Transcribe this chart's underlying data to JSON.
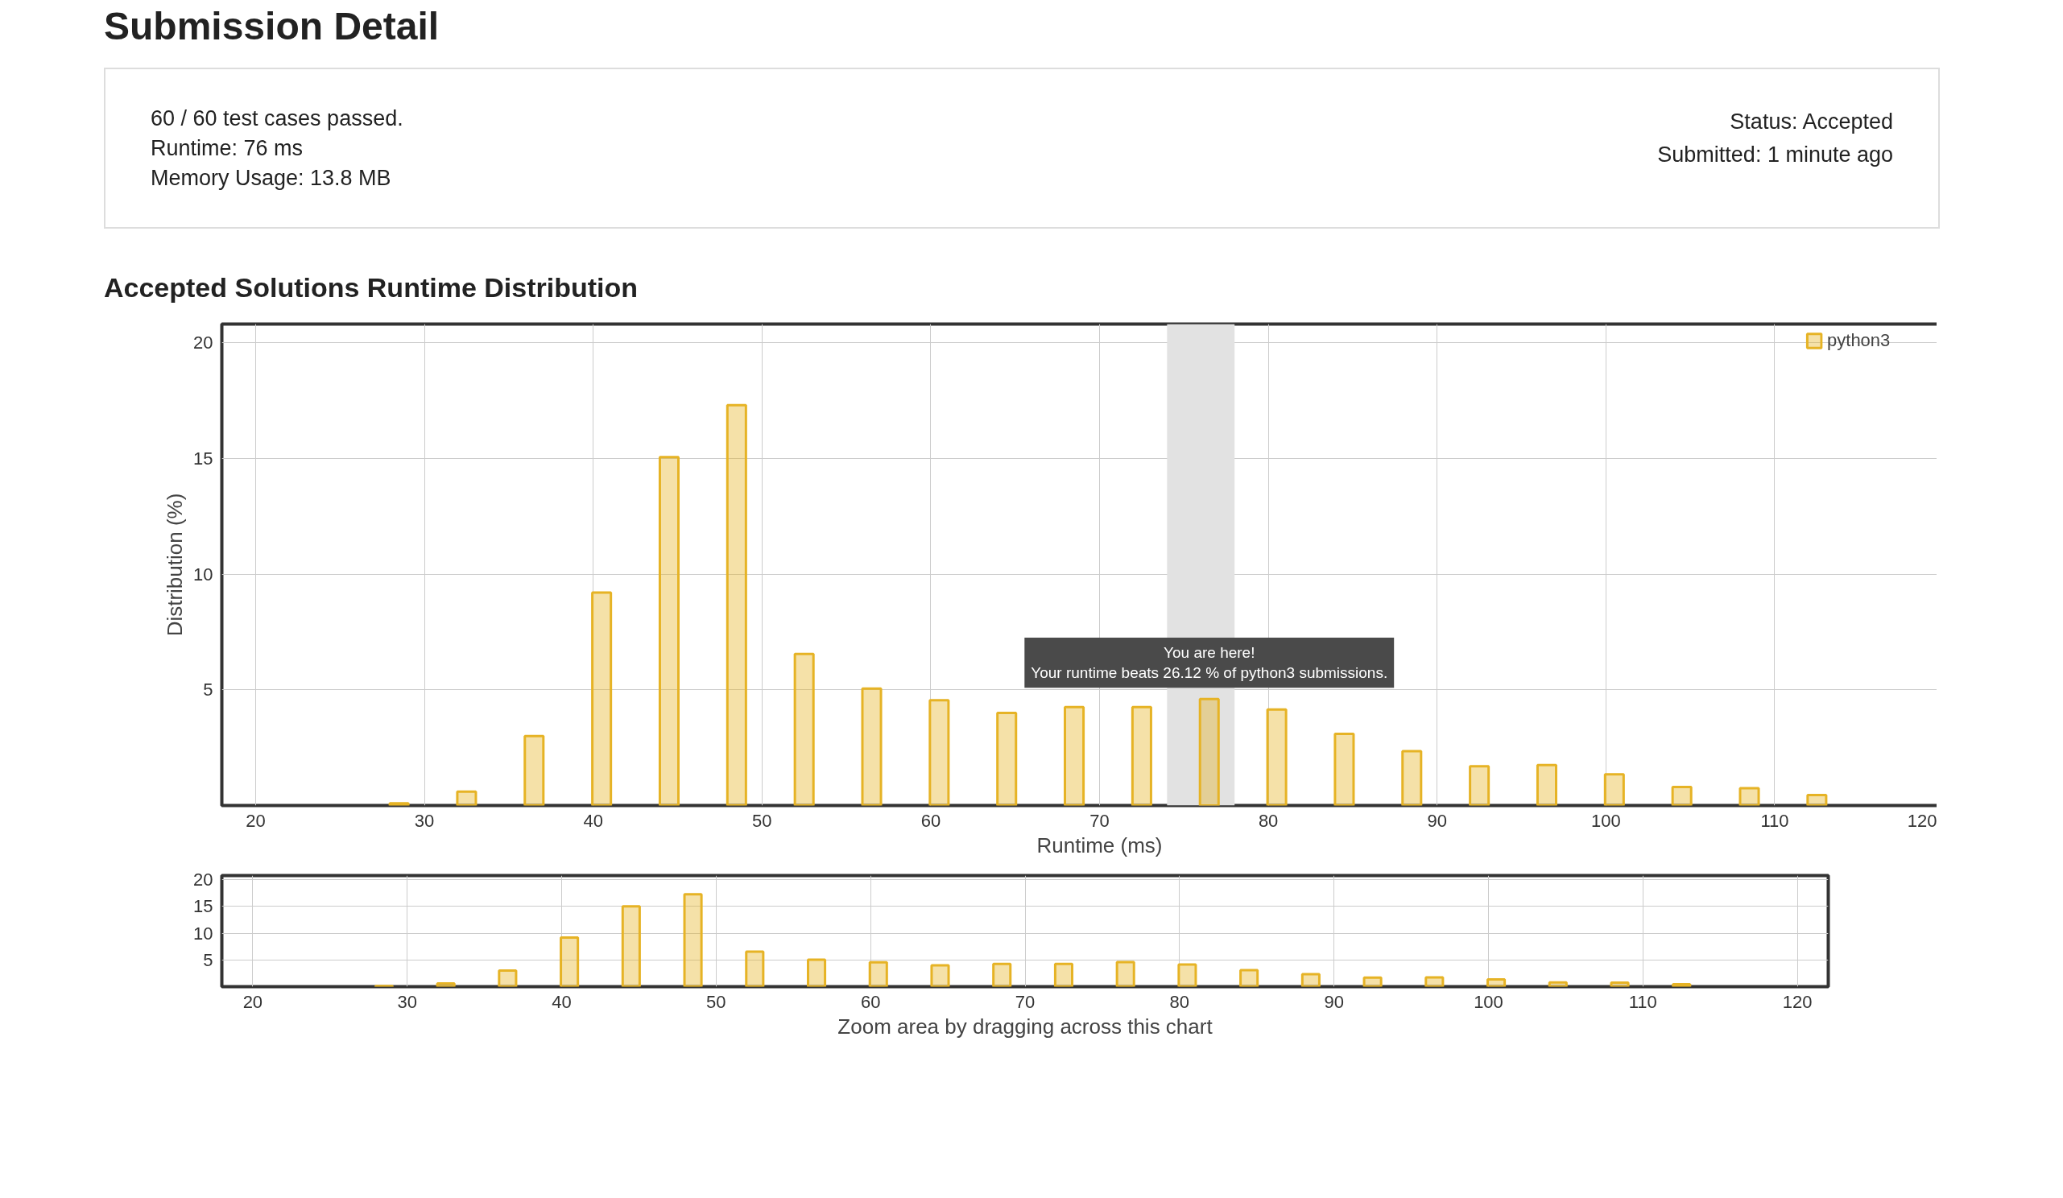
{
  "chart_data": [
    {
      "type": "other",
      "title": "Submission Detail",
      "annotations": [
        "60 / 60 test cases passed.",
        "Runtime: 76 ms",
        "Memory Usage: 13.8 MB",
        "Status: Accepted",
        "Submitted: 1 minute ago"
      ]
    },
    {
      "type": "bar",
      "title": "Accepted Solutions Runtime Distribution",
      "xlabel": "Runtime (ms)",
      "ylabel": "Distribution (%)",
      "x": [
        28.5,
        32.5,
        36.5,
        40.5,
        44.5,
        48.5,
        52.5,
        56.5,
        60.5,
        64.5,
        68.5,
        72.5,
        76.5,
        80.5,
        84.5,
        88.5,
        92.5,
        96.5,
        100.5,
        104.5,
        108.5,
        112.5
      ],
      "series": [
        {
          "name": "python3",
          "color": "#e6b325",
          "values": [
            0.1,
            0.6,
            3.0,
            9.2,
            15.05,
            17.3,
            6.55,
            5.05,
            4.55,
            4.0,
            4.25,
            4.25,
            4.6,
            4.15,
            3.1,
            2.35,
            1.7,
            1.75,
            1.35,
            0.8,
            0.75,
            0.45
          ]
        }
      ],
      "xlim": [
        18,
        122
      ],
      "xticks": [
        20,
        30,
        40,
        50,
        60,
        70,
        80,
        90,
        100,
        110,
        120
      ],
      "ylim": [
        0,
        20.8
      ],
      "yticks": [
        5,
        10,
        15,
        20
      ],
      "grid": true,
      "legend": "top right",
      "bands": [
        {
          "axis": "x",
          "from": 74,
          "to": 78,
          "color": "#e2e2e2"
        }
      ],
      "annotations": [
        {
          "text": "You are here!\nYour runtime beats 26.12 % of python3 submissions.",
          "x": 76.5,
          "y": 4.6
        }
      ]
    },
    {
      "type": "bar",
      "xlabel": "Zoom area by dragging across this chart",
      "x": [
        28.5,
        32.5,
        36.5,
        40.5,
        44.5,
        48.5,
        52.5,
        56.5,
        60.5,
        64.5,
        68.5,
        72.5,
        76.5,
        80.5,
        84.5,
        88.5,
        92.5,
        96.5,
        100.5,
        104.5,
        108.5,
        112.5
      ],
      "series": [
        {
          "color": "#e6b325",
          "values": [
            0.1,
            0.6,
            3.0,
            9.2,
            15.05,
            17.3,
            6.55,
            5.05,
            4.55,
            4.0,
            4.25,
            4.25,
            4.6,
            4.15,
            3.1,
            2.35,
            1.7,
            1.75,
            1.35,
            0.8,
            0.75,
            0.45
          ]
        }
      ],
      "xlim": [
        18,
        122
      ],
      "xticks": [
        20,
        30,
        40,
        50,
        60,
        70,
        80,
        90,
        100,
        110,
        120
      ],
      "ylim": [
        0,
        20.8
      ],
      "yticks": [
        5,
        10,
        15,
        20
      ],
      "grid": true
    }
  ]
}
